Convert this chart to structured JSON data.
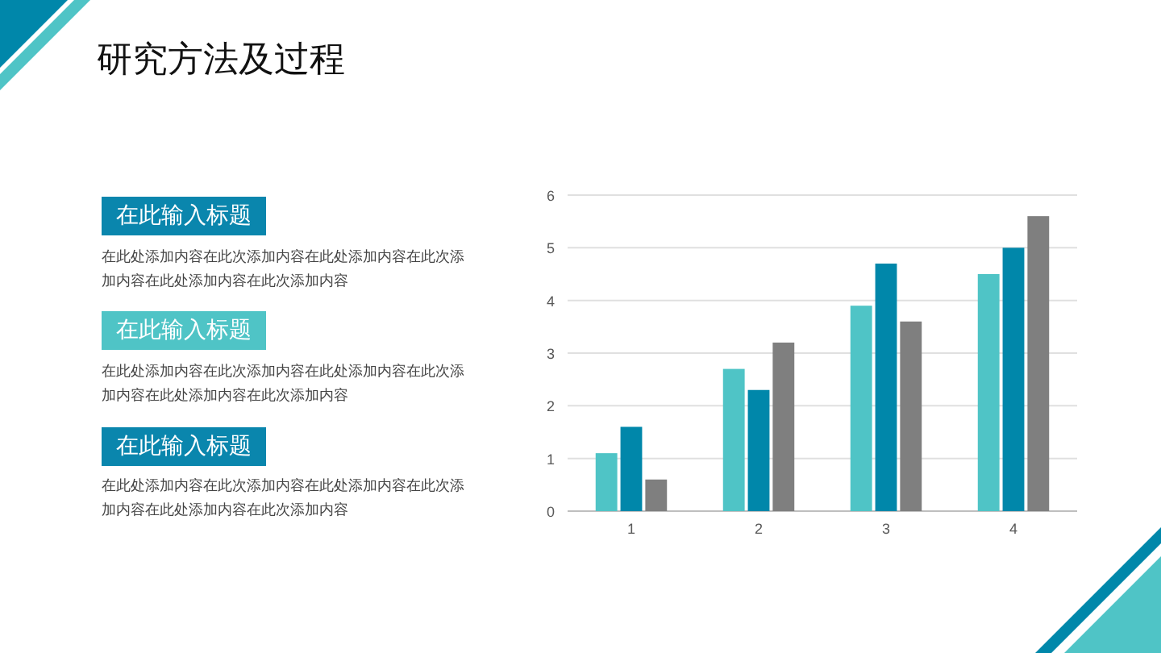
{
  "chart_data": [
    {
      "type": "other",
      "title": "研究方法及过程",
      "annotations": [
        "在此输入标题",
        "在此处添加内容在此次添加内容在此处添加内容在此次添加内容在此处添加内容在此次添加内容",
        "在此输入标题",
        "在此处添加内容在此次添加内容在此处添加内容在此次添加内容在此处添加内容在此次添加内容",
        "在此输入标题",
        "在此处添加内容在此次添加内容在此处添加内容在此次添加内容在此处添加内容在此次添加内容"
      ]
    },
    {
      "type": "bar",
      "categories": [
        "1",
        "2",
        "3",
        "4"
      ],
      "series": [
        {
          "color": "#4fc4c6",
          "values": [
            1.1,
            2.7,
            3.9,
            4.5
          ]
        },
        {
          "color": "#0087aa",
          "values": [
            1.6,
            2.3,
            4.7,
            5.0
          ]
        },
        {
          "color": "#7f7f7f",
          "values": [
            0.6,
            3.2,
            3.6,
            5.6
          ]
        }
      ],
      "ylim": [
        0,
        6
      ],
      "yticks": [
        0,
        1,
        2,
        3,
        4,
        5,
        6
      ],
      "grid": "y"
    }
  ]
}
